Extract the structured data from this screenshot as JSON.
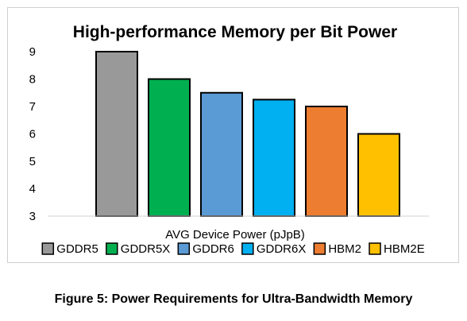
{
  "chart_data": {
    "type": "bar",
    "title": "High-performance Memory per Bit Power",
    "xlabel": "AVG Device Power (pJpB)",
    "ylabel": "",
    "ylim": [
      3,
      9
    ],
    "yticks": [
      3,
      4,
      5,
      6,
      7,
      8,
      9
    ],
    "grid": false,
    "legend_position": "bottom",
    "series": [
      {
        "name": "GDDR5",
        "value": 9,
        "color": "#999999"
      },
      {
        "name": "GDDR5X",
        "value": 8,
        "color": "#00b050"
      },
      {
        "name": "GDDR6",
        "value": 7.5,
        "color": "#5b9bd5"
      },
      {
        "name": "GDDR6X",
        "value": 7.25,
        "color": "#00b0f0"
      },
      {
        "name": "HBM2",
        "value": 7,
        "color": "#ed7d31"
      },
      {
        "name": "HBM2E",
        "value": 6,
        "color": "#ffc000"
      }
    ]
  },
  "caption": "Figure 5: Power Requirements for Ultra-Bandwidth Memory"
}
